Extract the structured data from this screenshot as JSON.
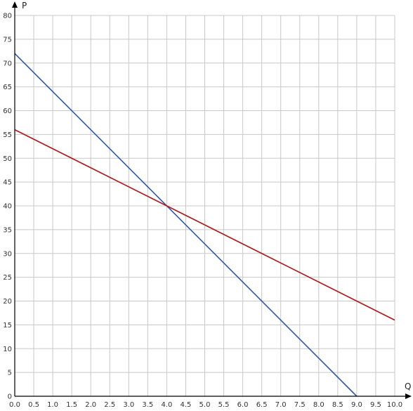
{
  "chart_data": {
    "type": "line",
    "title": "",
    "xlabel": "Q",
    "ylabel": "P",
    "xlim": [
      0,
      10
    ],
    "ylim": [
      0,
      80
    ],
    "x_ticks": [
      "0.0",
      "0.5",
      "1.0",
      "1.5",
      "2.0",
      "2.5",
      "3.0",
      "3.5",
      "4.0",
      "4.5",
      "5.0",
      "5.5",
      "6.0",
      "6.5",
      "7.0",
      "7.5",
      "8.0",
      "8.5",
      "9.0",
      "9.5",
      "10.0"
    ],
    "y_ticks": [
      "0",
      "5",
      "10",
      "15",
      "20",
      "25",
      "30",
      "35",
      "40",
      "45",
      "50",
      "55",
      "60",
      "65",
      "70",
      "75",
      "80"
    ],
    "grid": true,
    "legend": false,
    "series": [
      {
        "color": "#2f56b0",
        "x": [
          0,
          9
        ],
        "y": [
          72,
          0
        ]
      },
      {
        "color": "#b0161c",
        "x": [
          0,
          10
        ],
        "y": [
          56,
          16
        ]
      }
    ]
  }
}
